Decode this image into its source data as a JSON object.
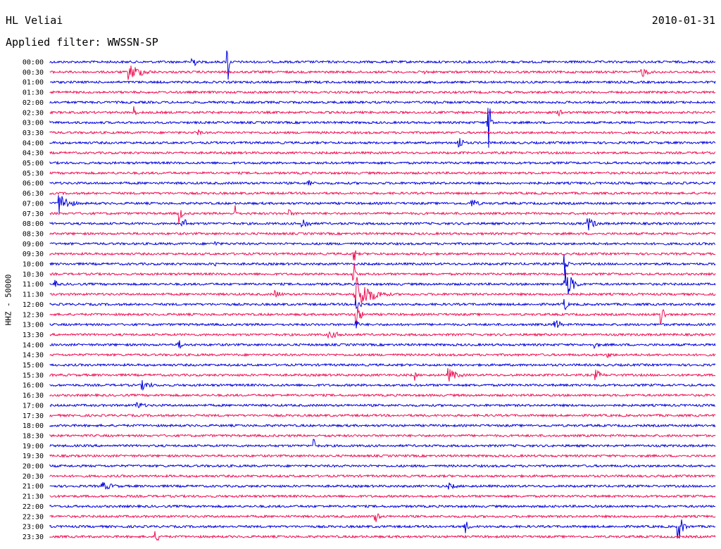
{
  "header": {
    "station": "HL Veliai",
    "date": "2010-01-31",
    "filter": "Applied filter: WWSSN-SP"
  },
  "chart_data": {
    "type": "helicorder",
    "title": "HL Veliai",
    "ylabel": "HHZ - 50000",
    "colors": {
      "odd": "#0000dd",
      "even": "#ee1155"
    },
    "rows": [
      {
        "time": "00:00",
        "color": "blue",
        "events": [
          {
            "x": 0.215,
            "amp": 14,
            "dur": 0.01
          },
          {
            "x": 0.268,
            "amp": 35,
            "dur": 0.004
          }
        ]
      },
      {
        "time": "00:30",
        "color": "red",
        "events": [
          {
            "x": 0.12,
            "amp": 12,
            "dur": 0.06
          },
          {
            "x": 0.565,
            "amp": 5,
            "dur": 0.008
          },
          {
            "x": 0.89,
            "amp": 8,
            "dur": 0.03
          }
        ]
      },
      {
        "time": "01:00",
        "color": "blue",
        "events": []
      },
      {
        "time": "01:30",
        "color": "red",
        "events": []
      },
      {
        "time": "02:00",
        "color": "blue",
        "events": [
          {
            "x": 0.58,
            "amp": 4,
            "dur": 0.02
          }
        ]
      },
      {
        "time": "02:30",
        "color": "red",
        "events": [
          {
            "x": 0.128,
            "amp": 10,
            "dur": 0.008
          },
          {
            "x": 0.765,
            "amp": 5,
            "dur": 0.04
          }
        ]
      },
      {
        "time": "03:00",
        "color": "blue",
        "events": [
          {
            "x": 0.66,
            "amp": 40,
            "dur": 0.008
          }
        ]
      },
      {
        "time": "03:30",
        "color": "red",
        "events": [
          {
            "x": 0.225,
            "amp": 6,
            "dur": 0.006
          }
        ]
      },
      {
        "time": "04:00",
        "color": "blue",
        "events": [
          {
            "x": 0.615,
            "amp": 10,
            "dur": 0.02
          }
        ]
      },
      {
        "time": "04:30",
        "color": "red",
        "events": []
      },
      {
        "time": "05:00",
        "color": "blue",
        "events": []
      },
      {
        "time": "05:30",
        "color": "red",
        "events": []
      },
      {
        "time": "06:00",
        "color": "blue",
        "events": [
          {
            "x": 0.39,
            "amp": 10,
            "dur": 0.006
          }
        ]
      },
      {
        "time": "06:30",
        "color": "red",
        "events": []
      },
      {
        "time": "07:00",
        "color": "blue",
        "events": [
          {
            "x": 0.015,
            "amp": 16,
            "dur": 0.04
          },
          {
            "x": 0.635,
            "amp": 7,
            "dur": 0.03
          }
        ]
      },
      {
        "time": "07:30",
        "color": "red",
        "events": [
          {
            "x": 0.195,
            "amp": 16,
            "dur": 0.01
          },
          {
            "x": 0.28,
            "amp": 12,
            "dur": 0.006
          },
          {
            "x": 0.36,
            "amp": 6,
            "dur": 0.02
          }
        ]
      },
      {
        "time": "08:00",
        "color": "blue",
        "events": [
          {
            "x": 0.2,
            "amp": 12,
            "dur": 0.015
          },
          {
            "x": 0.38,
            "amp": 9,
            "dur": 0.03
          },
          {
            "x": 0.81,
            "amp": 10,
            "dur": 0.03
          }
        ]
      },
      {
        "time": "08:30",
        "color": "red",
        "events": []
      },
      {
        "time": "09:00",
        "color": "blue",
        "events": [
          {
            "x": 0.25,
            "amp": 4,
            "dur": 0.02
          }
        ]
      },
      {
        "time": "09:30",
        "color": "red",
        "events": [
          {
            "x": 0.458,
            "amp": 14,
            "dur": 0.004
          },
          {
            "x": 0.56,
            "amp": 4,
            "dur": 0.02
          }
        ]
      },
      {
        "time": "10:00",
        "color": "blue",
        "events": [
          {
            "x": 0.25,
            "amp": 4,
            "dur": 0.01
          },
          {
            "x": 0.775,
            "amp": 22,
            "dur": 0.008
          }
        ]
      },
      {
        "time": "10:30",
        "color": "red",
        "events": [
          {
            "x": 0.458,
            "amp": 26,
            "dur": 0.004
          }
        ]
      },
      {
        "time": "11:00",
        "color": "blue",
        "events": [
          {
            "x": 0.01,
            "amp": 6,
            "dur": 0.01
          },
          {
            "x": 0.775,
            "amp": 24,
            "dur": 0.03
          }
        ]
      },
      {
        "time": "11:30",
        "color": "red",
        "events": [
          {
            "x": 0.46,
            "amp": 28,
            "dur": 0.06
          },
          {
            "x": 0.34,
            "amp": 6,
            "dur": 0.03
          }
        ]
      },
      {
        "time": "12:00",
        "color": "blue",
        "events": [
          {
            "x": 0.462,
            "amp": 10,
            "dur": 0.02
          },
          {
            "x": 0.775,
            "amp": 10,
            "dur": 0.01
          }
        ]
      },
      {
        "time": "12:30",
        "color": "red",
        "events": [
          {
            "x": 0.462,
            "amp": 18,
            "dur": 0.015
          },
          {
            "x": 0.92,
            "amp": 18,
            "dur": 0.01
          }
        ]
      },
      {
        "time": "13:00",
        "color": "blue",
        "events": [
          {
            "x": 0.462,
            "amp": 8,
            "dur": 0.01
          },
          {
            "x": 0.76,
            "amp": 10,
            "dur": 0.02
          }
        ]
      },
      {
        "time": "13:30",
        "color": "red",
        "events": [
          {
            "x": 0.42,
            "amp": 5,
            "dur": 0.1
          }
        ]
      },
      {
        "time": "14:00",
        "color": "blue",
        "events": [
          {
            "x": 0.195,
            "amp": 7,
            "dur": 0.02
          },
          {
            "x": 0.82,
            "amp": 5,
            "dur": 0.02
          }
        ]
      },
      {
        "time": "14:30",
        "color": "red",
        "events": [
          {
            "x": 0.84,
            "amp": 4,
            "dur": 0.03
          }
        ]
      },
      {
        "time": "15:00",
        "color": "blue",
        "events": []
      },
      {
        "time": "15:30",
        "color": "red",
        "events": [
          {
            "x": 0.55,
            "amp": 8,
            "dur": 0.005
          },
          {
            "x": 0.6,
            "amp": 10,
            "dur": 0.04
          },
          {
            "x": 0.82,
            "amp": 8,
            "dur": 0.03
          }
        ]
      },
      {
        "time": "16:00",
        "color": "blue",
        "events": [
          {
            "x": 0.14,
            "amp": 7,
            "dur": 0.04
          }
        ]
      },
      {
        "time": "16:30",
        "color": "red",
        "events": []
      },
      {
        "time": "17:00",
        "color": "blue",
        "events": [
          {
            "x": 0.13,
            "amp": 6,
            "dur": 0.04
          }
        ]
      },
      {
        "time": "17:30",
        "color": "red",
        "events": []
      },
      {
        "time": "18:00",
        "color": "blue",
        "events": []
      },
      {
        "time": "18:30",
        "color": "red",
        "events": [
          {
            "x": 0.42,
            "amp": 6,
            "dur": 0.005
          }
        ]
      },
      {
        "time": "19:00",
        "color": "blue",
        "events": [
          {
            "x": 0.398,
            "amp": 10,
            "dur": 0.01
          }
        ]
      },
      {
        "time": "19:30",
        "color": "red",
        "events": []
      },
      {
        "time": "20:00",
        "color": "blue",
        "events": []
      },
      {
        "time": "20:30",
        "color": "red",
        "events": []
      },
      {
        "time": "21:00",
        "color": "blue",
        "events": [
          {
            "x": 0.08,
            "amp": 6,
            "dur": 0.06
          },
          {
            "x": 0.6,
            "amp": 5,
            "dur": 0.04
          }
        ]
      },
      {
        "time": "21:30",
        "color": "red",
        "events": []
      },
      {
        "time": "22:00",
        "color": "blue",
        "events": []
      },
      {
        "time": "22:30",
        "color": "red",
        "events": [
          {
            "x": 0.49,
            "amp": 9,
            "dur": 0.015
          }
        ]
      },
      {
        "time": "23:00",
        "color": "blue",
        "events": [
          {
            "x": 0.625,
            "amp": 10,
            "dur": 0.015
          },
          {
            "x": 0.945,
            "amp": 20,
            "dur": 0.02
          }
        ]
      },
      {
        "time": "23:30",
        "color": "red",
        "events": [
          {
            "x": 0.16,
            "amp": 8,
            "dur": 0.02
          }
        ]
      }
    ]
  }
}
